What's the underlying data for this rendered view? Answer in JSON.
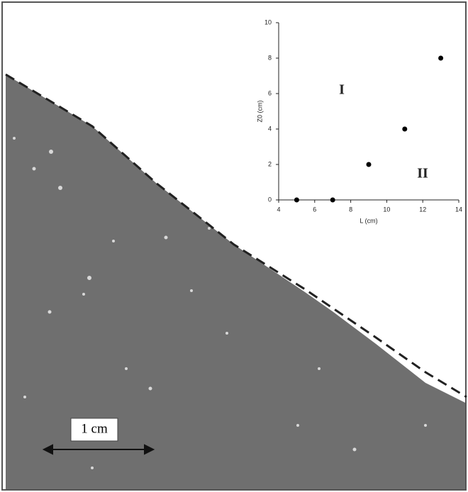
{
  "chart_data": {
    "type": "scatter",
    "x": [
      5,
      7,
      9,
      11,
      13
    ],
    "series": [
      {
        "color": "#000000",
        "values": [
          0,
          0,
          2,
          4,
          8
        ]
      }
    ],
    "xlabel": "L (cm)",
    "ylabel": "Z0 (cm)",
    "xlim": [
      4,
      14
    ],
    "xticks": [
      4,
      6,
      8,
      10,
      12,
      14
    ],
    "ylim": [
      0,
      10
    ],
    "yticks": [
      0,
      2,
      4,
      6,
      8,
      10
    ],
    "annotations": [
      "I",
      "II"
    ]
  },
  "scale_bar_label": "1 cm"
}
